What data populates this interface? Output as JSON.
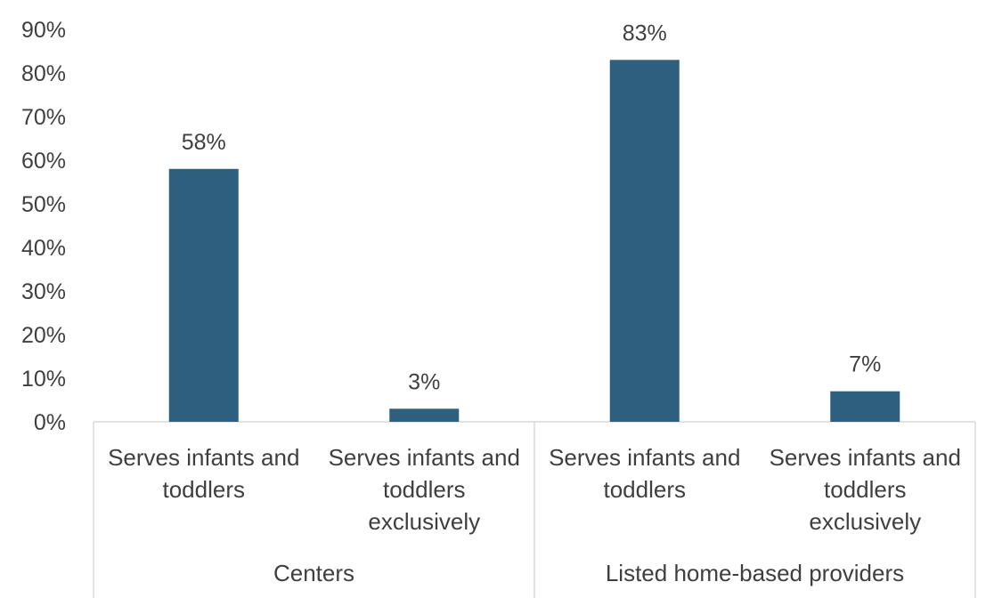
{
  "chart_data": {
    "type": "bar",
    "groups": [
      {
        "label": "Centers",
        "categories": [
          [
            "Serves infants and",
            "toddlers"
          ],
          [
            "Serves infants and",
            "toddlers",
            "exclusively"
          ]
        ],
        "values": [
          58,
          3
        ],
        "data_labels": [
          "58%",
          "3%"
        ]
      },
      {
        "label": "Listed home-based providers",
        "categories": [
          [
            "Serves infants and",
            "toddlers"
          ],
          [
            "Serves infants and",
            "toddlers",
            "exclusively"
          ]
        ],
        "values": [
          83,
          7
        ],
        "data_labels": [
          "83%",
          "7%"
        ]
      }
    ],
    "y_ticks": [
      "0%",
      "10%",
      "20%",
      "30%",
      "40%",
      "50%",
      "60%",
      "70%",
      "80%",
      "90%"
    ],
    "ylim": [
      0,
      90
    ],
    "title": "",
    "xlabel": "",
    "ylabel": "",
    "grid": false,
    "legend": "none",
    "bar_color": "#2e5f7e"
  }
}
